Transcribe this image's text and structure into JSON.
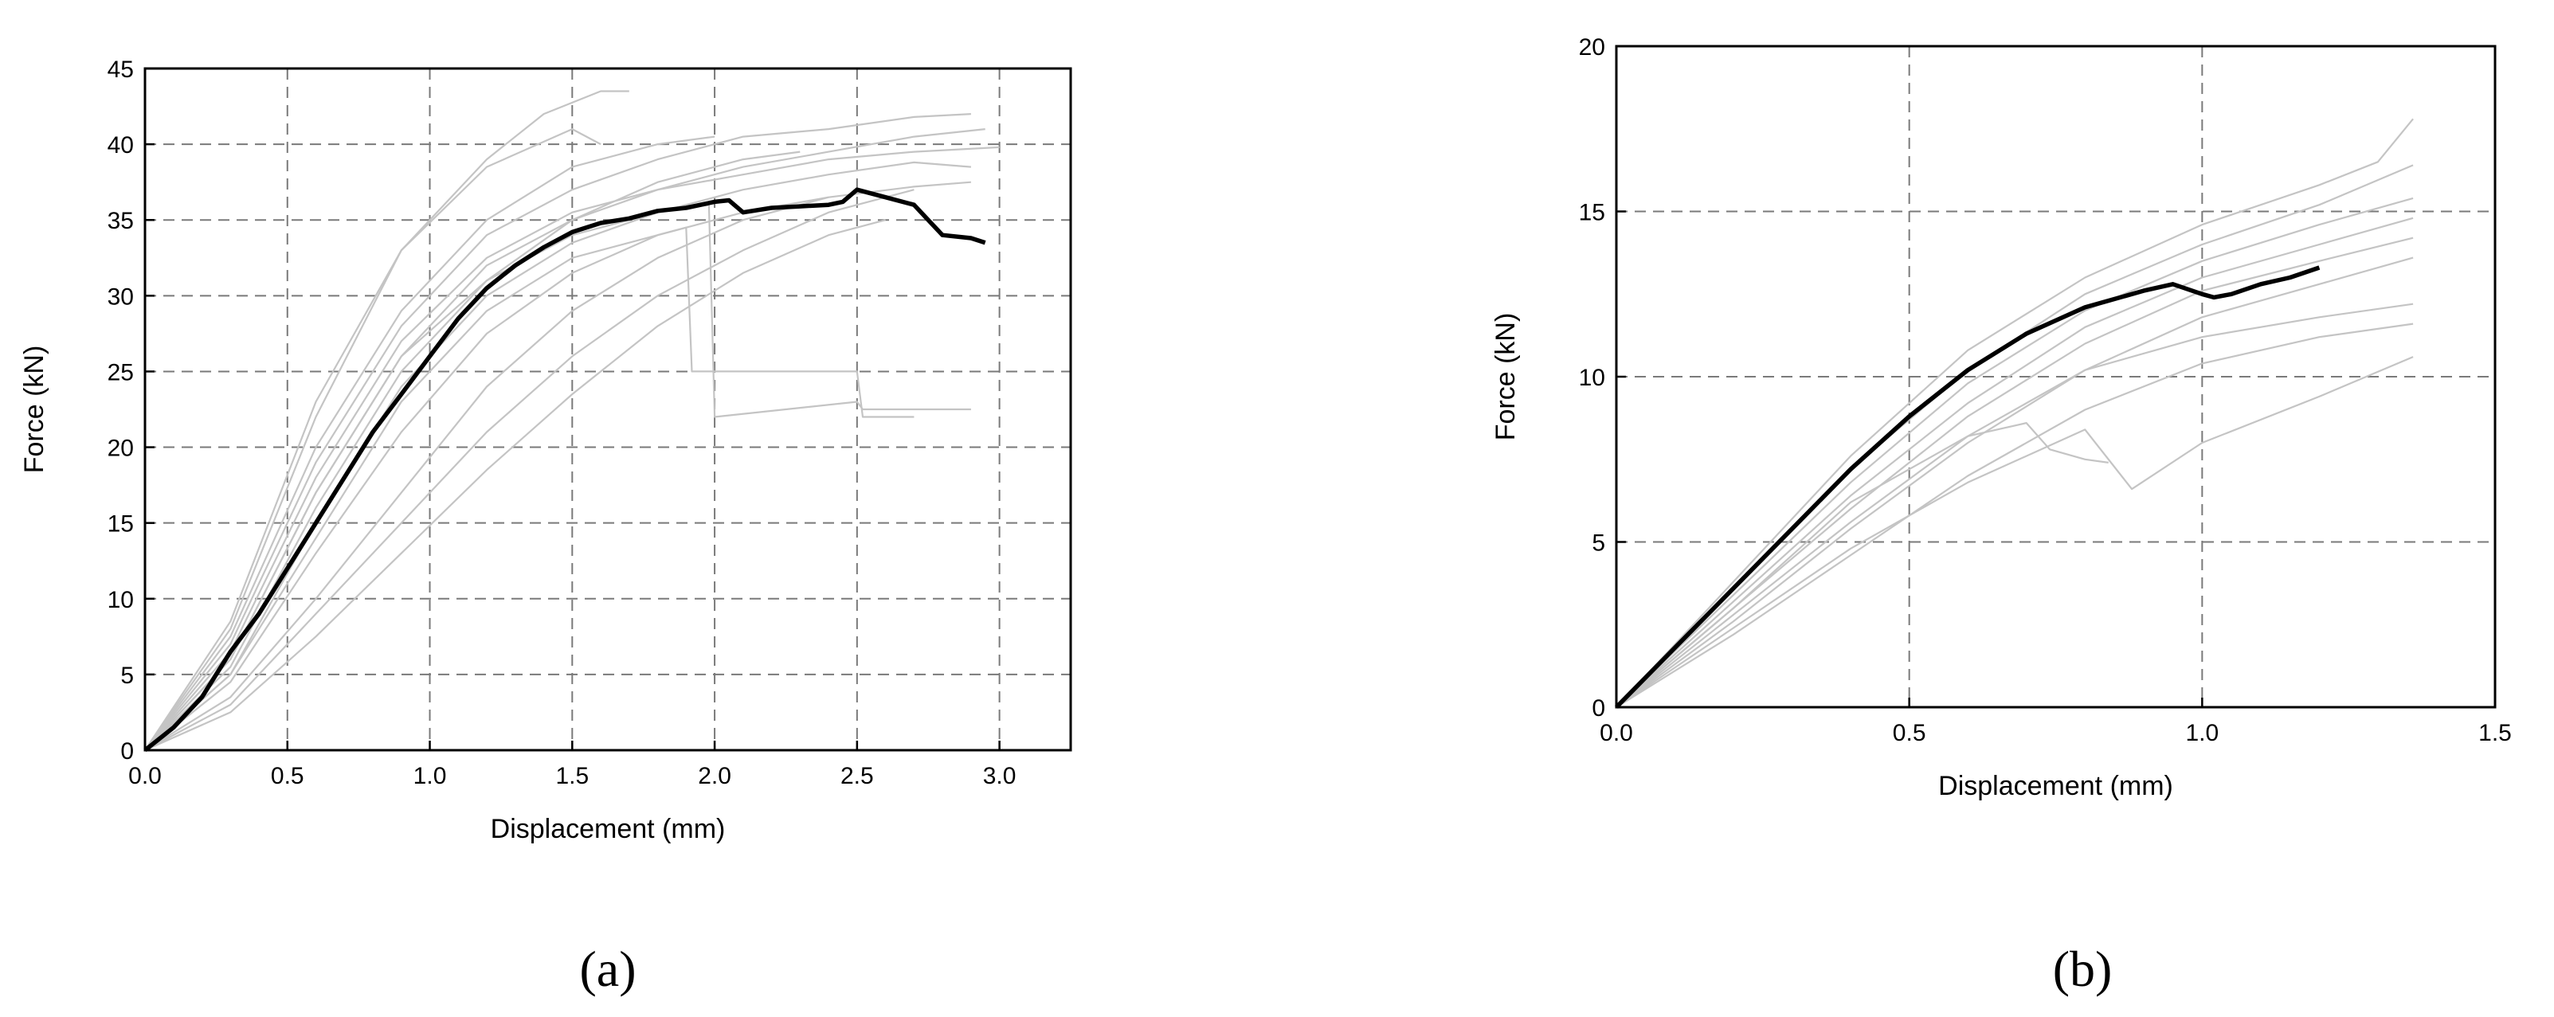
{
  "chart_data": [
    {
      "type": "line",
      "panel_label": "(a)",
      "xlabel": "Displacement (mm)",
      "ylabel": "Force (kN)",
      "xlim": [
        0,
        3.25
      ],
      "ylim": [
        0,
        45
      ],
      "xticks": [
        "0.0",
        "0.5",
        "1.0",
        "1.5",
        "2.0",
        "2.5",
        "3.0"
      ],
      "xtick_values": [
        0,
        0.5,
        1.0,
        1.5,
        2.0,
        2.5,
        3.0
      ],
      "yticks": [
        "0",
        "5",
        "10",
        "15",
        "20",
        "25",
        "30",
        "35",
        "40",
        "45"
      ],
      "ytick_values": [
        0,
        5,
        10,
        15,
        20,
        25,
        30,
        35,
        40,
        45
      ],
      "grid": true,
      "series": [
        {
          "role": "mean",
          "color": "#000000",
          "x": [
            0,
            0.1,
            0.2,
            0.3,
            0.4,
            0.5,
            0.6,
            0.7,
            0.8,
            0.9,
            1.0,
            1.1,
            1.2,
            1.3,
            1.4,
            1.5,
            1.6,
            1.7,
            1.8,
            1.9,
            2.0,
            2.05,
            2.1,
            2.2,
            2.3,
            2.4,
            2.45,
            2.5,
            2.6,
            2.7,
            2.75,
            2.8,
            2.9,
            2.95
          ],
          "y": [
            0,
            1.5,
            3.5,
            6.5,
            9,
            12,
            15,
            18,
            21,
            23.5,
            26,
            28.5,
            30.5,
            32,
            33.2,
            34.2,
            34.8,
            35.1,
            35.6,
            35.8,
            36.2,
            36.3,
            35.5,
            35.8,
            35.9,
            36.0,
            36.2,
            37.0,
            36.5,
            36.0,
            35.0,
            34.0,
            33.8,
            33.5
          ]
        },
        {
          "role": "specimen",
          "color": "#c4c4c4",
          "x": [
            0,
            0.3,
            0.6,
            0.9,
            1.2,
            1.4,
            1.6,
            1.7
          ],
          "y": [
            0,
            8,
            22,
            33,
            39,
            42,
            43.5,
            43.5
          ]
        },
        {
          "role": "specimen",
          "color": "#c4c4c4",
          "x": [
            0,
            0.3,
            0.6,
            0.9,
            1.2,
            1.5,
            1.8,
            2.1,
            2.4,
            2.7,
            2.9
          ],
          "y": [
            0,
            7,
            19,
            28,
            34,
            37,
            39,
            40.5,
            41,
            41.8,
            42
          ]
        },
        {
          "role": "specimen",
          "color": "#c4c4c4",
          "x": [
            0,
            0.3,
            0.6,
            0.9,
            1.2,
            1.5,
            1.8,
            2.1,
            2.4,
            2.7,
            2.95
          ],
          "y": [
            0,
            6,
            17,
            26,
            32,
            35,
            37,
            38.5,
            39.5,
            40.5,
            41
          ]
        },
        {
          "role": "specimen",
          "color": "#c4c4c4",
          "x": [
            0,
            0.3,
            0.6,
            0.9,
            1.2,
            1.5,
            1.8,
            2.1,
            2.4,
            2.7,
            2.9
          ],
          "y": [
            0,
            5,
            15,
            24,
            30,
            33.5,
            35.5,
            37,
            38,
            38.8,
            38.5
          ]
        },
        {
          "role": "specimen",
          "color": "#c4c4c4",
          "x": [
            0,
            0.3,
            0.6,
            0.9,
            1.2,
            1.5,
            1.8,
            1.98,
            2.0,
            2.5,
            2.52,
            2.9
          ],
          "y": [
            0,
            6,
            17,
            26,
            31,
            34,
            35.5,
            36,
            22,
            23,
            22.5,
            22.5
          ]
        },
        {
          "role": "specimen",
          "color": "#c4c4c4",
          "x": [
            0,
            0.3,
            0.6,
            0.9,
            1.2,
            1.5,
            1.8,
            1.9,
            1.92,
            2.5,
            2.52,
            2.7
          ],
          "y": [
            0,
            5,
            14,
            23,
            29,
            32.5,
            34,
            34.5,
            25,
            25,
            22,
            22
          ]
        },
        {
          "role": "specimen",
          "color": "#c4c4c4",
          "x": [
            0,
            0.3,
            0.6,
            0.9,
            1.2,
            1.5,
            1.8,
            2.1,
            2.4,
            2.7
          ],
          "y": [
            0,
            3,
            9,
            15,
            21,
            26,
            30,
            33,
            35.5,
            37
          ]
        },
        {
          "role": "specimen",
          "color": "#c4c4c4",
          "x": [
            0,
            0.3,
            0.6,
            0.9,
            1.2,
            1.5,
            1.8,
            2.1,
            2.4,
            2.6
          ],
          "y": [
            0,
            2.5,
            7.5,
            13,
            18.5,
            23.5,
            28,
            31.5,
            34,
            35
          ]
        },
        {
          "role": "specimen",
          "color": "#c4c4c4",
          "x": [
            0,
            0.3,
            0.6,
            0.9,
            1.2,
            1.5,
            1.8,
            2.1,
            2.4
          ],
          "y": [
            0,
            3.5,
            10,
            17,
            24,
            29,
            32.5,
            35,
            36.5
          ]
        },
        {
          "role": "specimen",
          "color": "#c4c4c4",
          "x": [
            0,
            0.3,
            0.6,
            0.9,
            1.2,
            1.5,
            1.8,
            2.1,
            2.4,
            2.7,
            3.0
          ],
          "y": [
            0,
            6.5,
            18,
            27,
            32.5,
            35.5,
            37,
            38,
            39,
            39.5,
            39.8
          ]
        },
        {
          "role": "specimen",
          "color": "#c4c4c4",
          "x": [
            0,
            0.3,
            0.6,
            0.9,
            1.2,
            1.5,
            1.8,
            2.0
          ],
          "y": [
            0,
            7.5,
            20,
            29,
            35,
            38.5,
            40,
            40.5
          ]
        },
        {
          "role": "specimen",
          "color": "#c4c4c4",
          "x": [
            0,
            0.3,
            0.6,
            0.9,
            1.2,
            1.5,
            1.8,
            2.1,
            2.4,
            2.7,
            2.9
          ],
          "y": [
            0,
            4.5,
            13,
            21,
            27.5,
            31.5,
            34,
            35.5,
            36.5,
            37.2,
            37.5
          ]
        },
        {
          "role": "specimen",
          "color": "#c4c4c4",
          "x": [
            0,
            0.3,
            0.6,
            0.9,
            1.2,
            1.5,
            1.6
          ],
          "y": [
            0,
            8.5,
            23,
            33,
            38.5,
            41,
            40
          ]
        },
        {
          "role": "specimen",
          "color": "#c4c4c4",
          "x": [
            0,
            0.3,
            0.6,
            0.9,
            1.2,
            1.5,
            1.8,
            2.1,
            2.3
          ],
          "y": [
            0,
            5.5,
            16,
            25,
            31,
            35,
            37.5,
            39,
            39.5
          ]
        }
      ]
    },
    {
      "type": "line",
      "panel_label": "(b)",
      "xlabel": "Displacement (mm)",
      "ylabel": "Force (kN)",
      "xlim": [
        0,
        1.5
      ],
      "ylim": [
        0,
        20
      ],
      "xticks": [
        "0.0",
        "0.5",
        "1.0",
        "1.5"
      ],
      "xtick_values": [
        0,
        0.5,
        1.0,
        1.5
      ],
      "yticks": [
        "0",
        "5",
        "10",
        "15",
        "20"
      ],
      "ytick_values": [
        0,
        5,
        10,
        15,
        20
      ],
      "grid": true,
      "series": [
        {
          "role": "mean",
          "color": "#000000",
          "x": [
            0,
            0.1,
            0.2,
            0.3,
            0.4,
            0.5,
            0.6,
            0.7,
            0.8,
            0.9,
            0.95,
            1.0,
            1.02,
            1.05,
            1.1,
            1.15,
            1.2
          ],
          "y": [
            0,
            1.8,
            3.6,
            5.4,
            7.2,
            8.8,
            10.2,
            11.3,
            12.1,
            12.6,
            12.8,
            12.5,
            12.4,
            12.5,
            12.8,
            13.0,
            13.3
          ]
        },
        {
          "role": "specimen",
          "color": "#c4c4c4",
          "x": [
            0,
            0.2,
            0.4,
            0.6,
            0.8,
            1.0,
            1.2,
            1.3,
            1.36
          ],
          "y": [
            0,
            3.8,
            7.6,
            10.8,
            13.0,
            14.6,
            15.8,
            16.5,
            17.8
          ]
        },
        {
          "role": "specimen",
          "color": "#c4c4c4",
          "x": [
            0,
            0.2,
            0.4,
            0.6,
            0.8,
            1.0,
            1.2,
            1.36
          ],
          "y": [
            0,
            3.4,
            6.8,
            9.8,
            12.0,
            13.5,
            14.6,
            15.4
          ]
        },
        {
          "role": "specimen",
          "color": "#c4c4c4",
          "x": [
            0,
            0.2,
            0.4,
            0.6,
            0.8,
            1.0,
            1.2,
            1.36
          ],
          "y": [
            0,
            3.0,
            6.0,
            8.8,
            11.0,
            12.6,
            13.5,
            14.2
          ]
        },
        {
          "role": "specimen",
          "color": "#c4c4c4",
          "x": [
            0,
            0.2,
            0.4,
            0.6,
            0.8,
            1.0,
            1.2,
            1.36
          ],
          "y": [
            0,
            2.6,
            5.4,
            8.0,
            10.2,
            11.8,
            12.8,
            13.6
          ]
        },
        {
          "role": "specimen",
          "color": "#c4c4c4",
          "x": [
            0,
            0.2,
            0.4,
            0.6,
            0.7,
            0.74,
            0.8,
            0.84
          ],
          "y": [
            0,
            3.0,
            6.2,
            8.2,
            8.6,
            7.8,
            7.5,
            7.4
          ]
        },
        {
          "role": "specimen",
          "color": "#c4c4c4",
          "x": [
            0,
            0.2,
            0.4,
            0.6,
            0.8,
            0.88,
            1.0,
            1.2,
            1.36
          ],
          "y": [
            0,
            2.4,
            4.8,
            6.8,
            8.4,
            6.6,
            8.0,
            9.4,
            10.6
          ]
        },
        {
          "role": "specimen",
          "color": "#c4c4c4",
          "x": [
            0,
            0.2,
            0.4,
            0.6,
            0.8,
            1.0,
            1.2,
            1.36
          ],
          "y": [
            0,
            2.8,
            5.6,
            8.2,
            10.2,
            11.2,
            11.8,
            12.2
          ]
        },
        {
          "role": "specimen",
          "color": "#c4c4c4",
          "x": [
            0,
            0.2,
            0.4,
            0.6,
            0.8,
            1.0,
            1.2,
            1.36
          ],
          "y": [
            0,
            3.6,
            7.2,
            10.2,
            12.5,
            14.0,
            15.2,
            16.4
          ]
        },
        {
          "role": "specimen",
          "color": "#c4c4c4",
          "x": [
            0,
            0.2,
            0.4,
            0.6,
            0.8,
            1.0,
            1.2,
            1.36
          ],
          "y": [
            0,
            3.2,
            6.4,
            9.2,
            11.5,
            13.0,
            14.0,
            14.8
          ]
        },
        {
          "role": "specimen",
          "color": "#c4c4c4",
          "x": [
            0,
            0.2,
            0.4,
            0.6,
            0.8,
            1.0,
            1.2,
            1.36
          ],
          "y": [
            0,
            2.2,
            4.6,
            7.0,
            9.0,
            10.4,
            11.2,
            11.6
          ]
        }
      ]
    }
  ]
}
